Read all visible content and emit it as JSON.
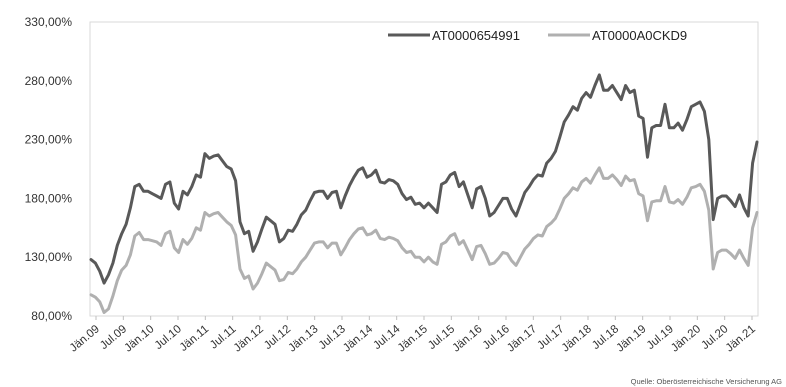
{
  "chart_data": {
    "type": "line",
    "title": "",
    "xlabel": "",
    "ylabel": "",
    "ylim": [
      80,
      330
    ],
    "y_ticks": [
      80,
      130,
      180,
      230,
      280,
      330
    ],
    "y_tick_labels": [
      "80,00%",
      "130,00%",
      "180,00%",
      "230,00%",
      "280,00%",
      "330,00%"
    ],
    "x_tick_labels": [
      "Jän.09",
      "Jul.09",
      "Jän.10",
      "Jul.10",
      "Jän.11",
      "Jul.11",
      "Jän.12",
      "Jul.12",
      "Jän.13",
      "Jul.13",
      "Jän.14",
      "Jul.14",
      "Jän.15",
      "Jul.15",
      "Jän.16",
      "Jul.16",
      "Jän.17",
      "Jul.17",
      "Jän.18",
      "Jul.18",
      "Jän.19",
      "Jul.19",
      "Jän.20",
      "Jul.20",
      "Jän.21"
    ],
    "grid": "none",
    "legend_position": "top-right",
    "source_note": "Quelle: Oberösterreichische Versicherung AG",
    "series": [
      {
        "name": "AT0000654991",
        "color": "#595959",
        "values": [
          128,
          125,
          118,
          108,
          115,
          125,
          140,
          150,
          158,
          172,
          190,
          192,
          186,
          186,
          184,
          182,
          180,
          192,
          194,
          176,
          171,
          186,
          183,
          190,
          200,
          198,
          218,
          214,
          216,
          217,
          212,
          207,
          205,
          195,
          160,
          150,
          152,
          135,
          143,
          154,
          164,
          161,
          158,
          143,
          146,
          153,
          152,
          158,
          166,
          170,
          178,
          185,
          186,
          186,
          180,
          185,
          186,
          172,
          182,
          191,
          198,
          204,
          206,
          198,
          200,
          204,
          194,
          193,
          196,
          195,
          192,
          184,
          179,
          181,
          175,
          176,
          172,
          176,
          172,
          168,
          192,
          194,
          200,
          202,
          190,
          194,
          183,
          172,
          188,
          190,
          180,
          165,
          168,
          174,
          180,
          180,
          171,
          165,
          175,
          185,
          190,
          196,
          200,
          199,
          210,
          214,
          220,
          232,
          245,
          251,
          258,
          255,
          265,
          270,
          266,
          276,
          285,
          272,
          272,
          276,
          270,
          264,
          276,
          270,
          272,
          250,
          248,
          215,
          240,
          242,
          242,
          260,
          240,
          240,
          244,
          238,
          247,
          258,
          260,
          262,
          254,
          230,
          162,
          180,
          182,
          182,
          178,
          173,
          183,
          172,
          165,
          210,
          228
        ]
      },
      {
        "name": "AT0000A0CKD9",
        "color": "#b0b0b0",
        "values": [
          98,
          96,
          92,
          83,
          86,
          97,
          110,
          119,
          123,
          132,
          148,
          151,
          145,
          145,
          144,
          143,
          140,
          150,
          152,
          138,
          134,
          145,
          141,
          146,
          155,
          153,
          168,
          165,
          167,
          168,
          164,
          160,
          157,
          149,
          120,
          112,
          114,
          103,
          108,
          116,
          125,
          122,
          119,
          110,
          111,
          117,
          116,
          120,
          126,
          130,
          136,
          142,
          143,
          143,
          138,
          142,
          142,
          132,
          138,
          145,
          150,
          154,
          155,
          149,
          150,
          153,
          146,
          145,
          147,
          146,
          144,
          138,
          134,
          135,
          130,
          130,
          126,
          130,
          126,
          124,
          141,
          143,
          148,
          150,
          141,
          144,
          136,
          128,
          139,
          140,
          133,
          124,
          125,
          129,
          134,
          133,
          127,
          123,
          130,
          137,
          141,
          146,
          149,
          148,
          156,
          159,
          163,
          171,
          180,
          184,
          189,
          187,
          194,
          197,
          193,
          200,
          206,
          197,
          197,
          200,
          196,
          191,
          199,
          195,
          196,
          184,
          182,
          161,
          177,
          178,
          178,
          190,
          177,
          176,
          179,
          175,
          181,
          189,
          190,
          192,
          186,
          170,
          120,
          134,
          136,
          136,
          133,
          129,
          136,
          129,
          123,
          155,
          168
        ]
      }
    ]
  }
}
